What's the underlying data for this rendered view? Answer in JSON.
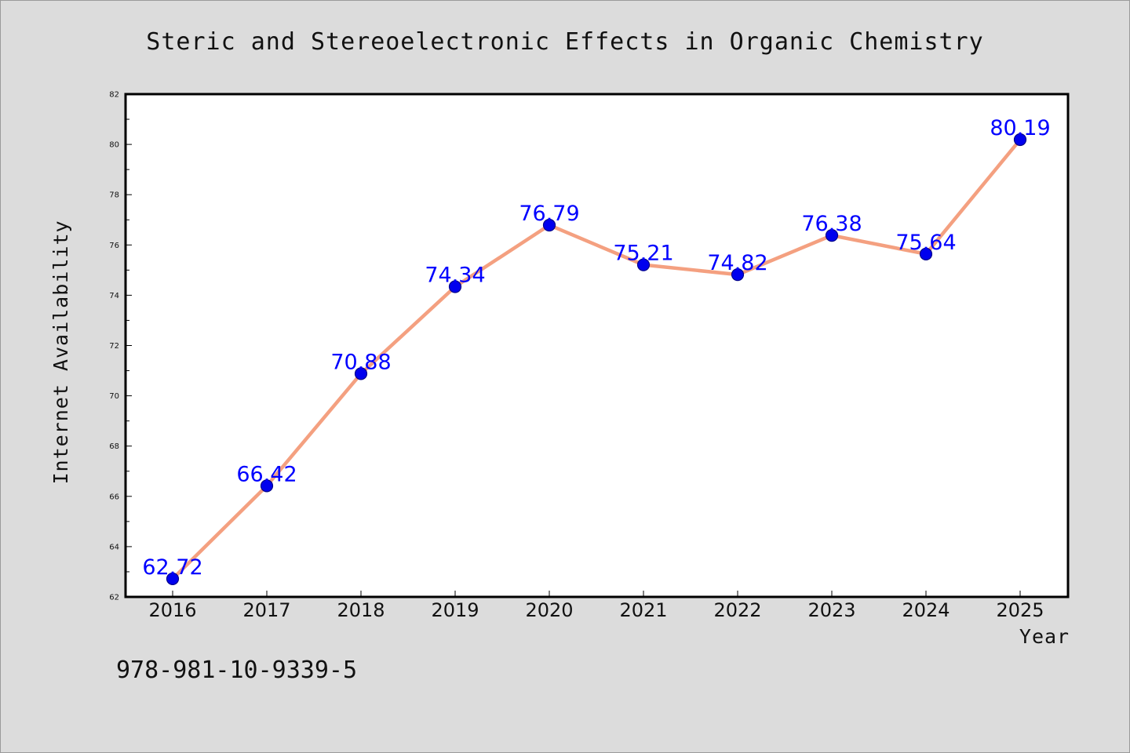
{
  "chart_data": {
    "type": "line",
    "title": "Steric and Stereoelectronic Effects in Organic Chemistry",
    "xlabel": "Year",
    "ylabel": "Internet Availability",
    "categories": [
      "2016",
      "2017",
      "2018",
      "2019",
      "2020",
      "2021",
      "2022",
      "2023",
      "2024",
      "2025"
    ],
    "values": [
      62.72,
      66.42,
      70.88,
      74.34,
      76.79,
      75.21,
      74.82,
      76.38,
      75.64,
      80.19
    ],
    "data_labels": [
      "62.72",
      "66.42",
      "70.88",
      "74.34",
      "76.79",
      "75.21",
      "74.82",
      "76.38",
      "75.64",
      "80.19"
    ],
    "ylim": [
      62,
      82
    ],
    "yticks": [
      "62",
      "64",
      "66",
      "68",
      "70",
      "72",
      "74",
      "76",
      "78",
      "80",
      "82"
    ],
    "grid": false,
    "legend": "none",
    "colors": {
      "line": "#f4a080",
      "marker": "#0000ee",
      "marker_edge": "#00008b",
      "label": "#0000ff",
      "background": "#dcdcdc",
      "plot_background": "#ffffff"
    }
  },
  "footer": {
    "isbn": "978-981-10-9339-5"
  }
}
